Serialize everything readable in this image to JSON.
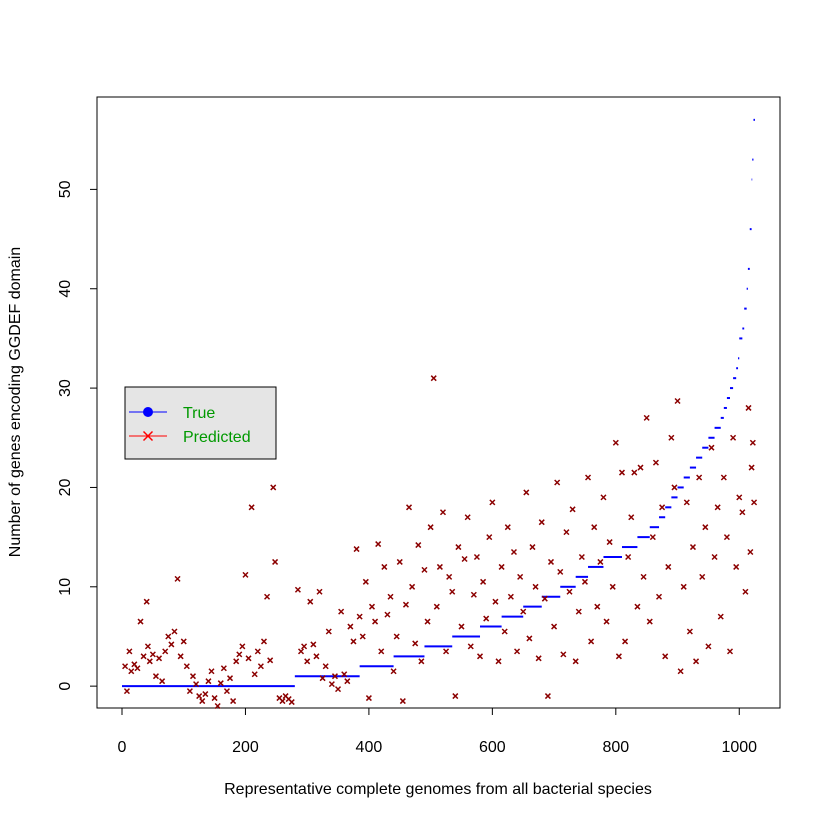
{
  "chart_data": {
    "type": "scatter",
    "xlabel": "Representative complete genomes from all bacterial species",
    "ylabel": "Number of genes encoding GGDEF domain",
    "xlim": [
      -40.5,
      1066
    ],
    "ylim": [
      -2.2,
      59.3
    ],
    "xticks": [
      0,
      200,
      400,
      600,
      800,
      1000
    ],
    "yticks": [
      0,
      10,
      20,
      30,
      40,
      50
    ],
    "grid": false,
    "legend": "left",
    "legend_text_color": "#009900",
    "series": [
      {
        "name": "True",
        "color": "#0000ff",
        "legend_color": "#0000ff",
        "style": "step",
        "x": [
          0,
          280,
          385,
          440,
          490,
          535,
          580,
          615,
          650,
          680,
          710,
          735,
          755,
          780,
          810,
          835,
          855,
          870,
          880,
          890,
          900,
          910,
          920,
          930,
          940,
          950,
          960,
          970,
          975,
          980,
          985,
          990,
          995,
          998,
          1000,
          1005,
          1008,
          1012,
          1014,
          1017,
          1020,
          1021,
          1023
        ],
        "values": [
          0,
          1,
          2,
          3,
          4,
          5,
          6,
          7,
          8,
          9,
          10,
          11,
          12,
          13,
          14,
          15,
          16,
          17,
          18,
          19,
          20,
          21,
          22,
          23,
          24,
          25,
          26,
          27,
          28,
          29,
          30,
          31,
          32,
          33,
          35,
          36,
          38,
          40,
          42,
          46,
          51,
          53,
          57
        ]
      },
      {
        "name": "Predicted",
        "color": "#8b0000",
        "legend_color": "#ff0000",
        "style": "cross",
        "x": [
          5,
          8,
          12,
          15,
          20,
          25,
          30,
          35,
          40,
          42,
          45,
          50,
          55,
          60,
          65,
          70,
          75,
          80,
          85,
          90,
          95,
          100,
          105,
          110,
          115,
          120,
          125,
          130,
          135,
          140,
          145,
          150,
          155,
          160,
          165,
          170,
          175,
          180,
          185,
          190,
          195,
          200,
          205,
          210,
          215,
          220,
          225,
          230,
          235,
          240,
          245,
          248,
          255,
          260,
          265,
          270,
          275,
          285,
          290,
          295,
          300,
          305,
          310,
          315,
          320,
          325,
          330,
          335,
          340,
          345,
          350,
          355,
          360,
          365,
          370,
          375,
          380,
          385,
          390,
          395,
          400,
          405,
          410,
          415,
          420,
          425,
          430,
          435,
          440,
          445,
          450,
          455,
          460,
          465,
          470,
          475,
          480,
          485,
          490,
          495,
          500,
          505,
          510,
          515,
          520,
          525,
          530,
          535,
          540,
          545,
          550,
          555,
          560,
          565,
          570,
          575,
          580,
          585,
          590,
          595,
          600,
          605,
          610,
          615,
          620,
          625,
          630,
          635,
          640,
          645,
          650,
          655,
          660,
          665,
          670,
          675,
          680,
          685,
          690,
          695,
          700,
          705,
          710,
          715,
          720,
          725,
          730,
          735,
          740,
          745,
          750,
          755,
          760,
          765,
          770,
          775,
          780,
          785,
          790,
          795,
          800,
          805,
          810,
          815,
          820,
          825,
          830,
          835,
          840,
          845,
          850,
          855,
          860,
          865,
          870,
          875,
          880,
          885,
          890,
          895,
          900,
          905,
          910,
          915,
          920,
          925,
          930,
          935,
          940,
          945,
          950,
          955,
          960,
          965,
          970,
          975,
          980,
          985,
          990,
          995,
          1000,
          1005,
          1010,
          1015,
          1018,
          1020,
          1022,
          1024
        ],
        "values": [
          2,
          -0.5,
          3.5,
          1.5,
          2.2,
          1.8,
          6.5,
          3,
          8.5,
          4,
          2.5,
          3.2,
          1,
          2.8,
          0.5,
          3.5,
          5,
          4.2,
          5.5,
          10.8,
          3,
          4.5,
          2,
          -0.5,
          1,
          0.2,
          -1,
          -1.5,
          -0.8,
          0.5,
          1.5,
          -1.2,
          -2,
          0.3,
          1.8,
          -0.5,
          0.8,
          -1.5,
          2.5,
          3.2,
          4,
          11.2,
          2.8,
          18,
          1.2,
          3.5,
          2,
          4.5,
          9,
          2.6,
          20,
          12.5,
          -1.2,
          -1.5,
          -1,
          -1.3,
          -1.6,
          9.7,
          3.5,
          4,
          2.5,
          8.5,
          4.2,
          3,
          9.5,
          0.8,
          2,
          5.5,
          0.2,
          1,
          -0.3,
          7.5,
          1.2,
          0.5,
          6,
          4.5,
          13.8,
          7,
          5,
          10.5,
          -1.2,
          8,
          6.5,
          14.3,
          3.5,
          12,
          7.2,
          9,
          1.5,
          5,
          12.5,
          -1.5,
          8.2,
          18,
          10,
          4.3,
          14.2,
          2.5,
          11.7,
          6.5,
          16,
          31,
          8,
          12,
          17.5,
          3.5,
          11,
          9.5,
          -1,
          14,
          6,
          12.8,
          17,
          4,
          9.2,
          13,
          3,
          10.5,
          6.8,
          15,
          18.5,
          8.5,
          2.5,
          12,
          5.5,
          16,
          9,
          13.5,
          3.5,
          11,
          7.5,
          19.5,
          4.8,
          14,
          10,
          2.8,
          16.5,
          8.8,
          -1,
          12.5,
          6,
          20.5,
          11.5,
          3.2,
          15.5,
          9.5,
          17.8,
          2.5,
          7.5,
          13,
          10.5,
          21,
          4.5,
          16,
          8,
          12.5,
          19,
          6.5,
          14.5,
          10,
          24.5,
          3,
          21.5,
          4.5,
          13,
          17,
          21.5,
          8,
          22,
          11,
          27,
          6.5,
          15,
          22.5,
          9,
          18,
          3,
          12,
          25,
          20,
          28.7,
          1.5,
          10,
          18.5,
          5.5,
          14,
          2.5,
          21,
          11,
          16,
          4,
          24,
          13,
          18,
          7,
          21,
          15,
          3.5,
          25,
          12,
          19,
          17.5,
          9.5,
          28,
          13.5,
          22,
          24.5,
          18.5
        ]
      }
    ]
  }
}
